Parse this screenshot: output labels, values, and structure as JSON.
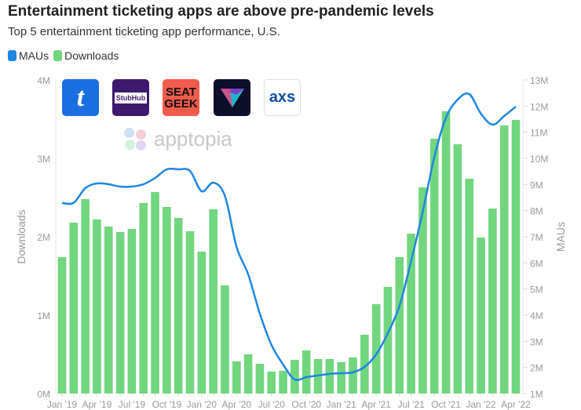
{
  "title": "Entertainment ticketing apps are above pre-pandemic levels",
  "subtitle": "Top 5 entertainment ticketing app performance, U.S.",
  "logos": [
    "t",
    "StubHub",
    "SEAT GEEK",
    "",
    "axs"
  ],
  "watermark": "apptopia",
  "chart_data": {
    "type": "bar+line",
    "legend": "top-left",
    "colors": {
      "MAUs": "#1f86e0",
      "Downloads": "#72d67e"
    },
    "categories": [
      "Jan '19",
      "Feb '19",
      "Mar '19",
      "Apr '19",
      "May '19",
      "Jun '19",
      "Jul '19",
      "Aug '19",
      "Sep '19",
      "Oct '19",
      "Nov '19",
      "Dec '19",
      "Jan '20",
      "Feb '20",
      "Mar '20",
      "Apr '20",
      "May '20",
      "Jun '20",
      "Jul '20",
      "Aug '20",
      "Sep '20",
      "Oct '20",
      "Nov '20",
      "Dec '20",
      "Jan '21",
      "Feb '21",
      "Mar '21",
      "Apr '21",
      "May '21",
      "Jun '21",
      "Jul '21",
      "Aug '21",
      "Sep '21",
      "Oct '21",
      "Nov '21",
      "Dec '21",
      "Jan '22",
      "Feb '22",
      "Mar '22",
      "Apr '22"
    ],
    "tick_labels": [
      "Jan '19",
      "Apr '19",
      "Jul '19",
      "Oct '19",
      "Jan '20",
      "Apr '20",
      "Jul '20",
      "Oct '20",
      "Jan '21",
      "Apr '21",
      "Jul '21",
      "Oct '21",
      "Jan '22",
      "Apr '22"
    ],
    "series": [
      {
        "name": "Downloads",
        "type": "bar",
        "axis": "left",
        "values": [
          1.74,
          2.18,
          2.48,
          2.22,
          2.13,
          2.06,
          2.1,
          2.43,
          2.57,
          2.38,
          2.24,
          2.07,
          1.81,
          2.35,
          1.38,
          0.41,
          0.5,
          0.38,
          0.28,
          0.29,
          0.43,
          0.55,
          0.44,
          0.44,
          0.4,
          0.46,
          0.75,
          1.14,
          1.36,
          1.74,
          2.04,
          2.63,
          3.25,
          3.6,
          3.18,
          2.74,
          1.99,
          2.36,
          3.42,
          3.49
        ]
      },
      {
        "name": "MAUs",
        "type": "line",
        "axis": "right",
        "values": [
          8.29,
          8.3,
          8.86,
          9.04,
          9.01,
          8.92,
          8.92,
          9.01,
          9.25,
          9.58,
          9.58,
          9.52,
          8.74,
          9.07,
          8.56,
          6.61,
          5.56,
          4.06,
          2.86,
          2.11,
          1.54,
          1.63,
          1.69,
          1.75,
          1.78,
          1.81,
          2.02,
          2.5,
          3.31,
          4.36,
          6.07,
          7.96,
          10.06,
          11.56,
          12.25,
          12.46,
          11.71,
          11.29,
          11.62,
          11.98
        ]
      }
    ],
    "ylabel": "Downloads",
    "ylim": [
      0,
      4
    ],
    "yticks": [
      "0M",
      "1M",
      "2M",
      "3M",
      "4M"
    ],
    "y2label": "MAUs",
    "y2lim": [
      1,
      13
    ],
    "y2ticks": [
      "1M",
      "2M",
      "3M",
      "4M",
      "5M",
      "6M",
      "7M",
      "8M",
      "9M",
      "10M",
      "11M",
      "12M",
      "13M"
    ],
    "grid": false
  }
}
